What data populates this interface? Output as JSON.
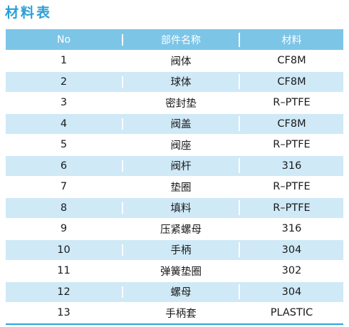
{
  "title": "材料表",
  "headers": [
    "No",
    "部件名称",
    "材料"
  ],
  "rows": [
    [
      "1",
      "阀体",
      "CF8M"
    ],
    [
      "2",
      "球体",
      "CF8M"
    ],
    [
      "3",
      "密封垫",
      "R–PTFE"
    ],
    [
      "4",
      "阀盖",
      "CF8M"
    ],
    [
      "5",
      "阀座",
      "R–PTFE"
    ],
    [
      "6",
      "阀杆",
      "316"
    ],
    [
      "7",
      "垫圈",
      "R–PTFE"
    ],
    [
      "8",
      "填料",
      "R–PTFE"
    ],
    [
      "9",
      "压紧螺母",
      "316"
    ],
    [
      "10",
      "手柄",
      "304"
    ],
    [
      "11",
      "弹簧垫圈",
      "302"
    ],
    [
      "12",
      "螺母",
      "304"
    ],
    [
      "13",
      "手柄套",
      "PLASTIC"
    ]
  ]
}
